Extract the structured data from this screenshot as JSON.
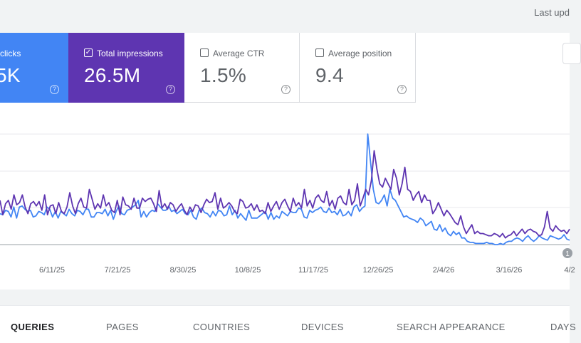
{
  "header": {
    "last_updated": "Last upd"
  },
  "metrics": [
    {
      "label": "clicks",
      "value": "5K",
      "checked": true,
      "color": "#4285f4"
    },
    {
      "label": "Total impressions",
      "value": "26.5M",
      "checked": true,
      "color": "#5e35b1"
    },
    {
      "label": "Average CTR",
      "value": "1.5%",
      "checked": false
    },
    {
      "label": "Average position",
      "value": "9.4",
      "checked": false
    }
  ],
  "help_glyph": "?",
  "chart_data": {
    "type": "line",
    "x_tick_labels": [
      "6/11/25",
      "7/21/25",
      "8/30/25",
      "10/8/25",
      "11/17/25",
      "12/26/25",
      "2/4/26",
      "3/16/26",
      "4/2"
    ],
    "grid": true,
    "annotation": "1",
    "series": [
      {
        "name": "clicks",
        "color": "#4285f4",
        "values": [
          28,
          27,
          31,
          30,
          25,
          34,
          24,
          34,
          35,
          32,
          30,
          31,
          25,
          26,
          30,
          29,
          27,
          34,
          32,
          25,
          30,
          24,
          30,
          28,
          26,
          32,
          28,
          26,
          31,
          30,
          27,
          32,
          32,
          25,
          25,
          29,
          29,
          28,
          32,
          26,
          31,
          23,
          30,
          35,
          28,
          27,
          31,
          32,
          34,
          36,
          40,
          25,
          30,
          25,
          29,
          31,
          30,
          37,
          34,
          31,
          31,
          35,
          30,
          31,
          28,
          30,
          32,
          28,
          27,
          31,
          25,
          23,
          31,
          33,
          29,
          28,
          25,
          30,
          26,
          31,
          30,
          26,
          27,
          35,
          27,
          31,
          24,
          28,
          25,
          22,
          31,
          24,
          24,
          24,
          26,
          28,
          30,
          23,
          29,
          23,
          26,
          24,
          30,
          28,
          26,
          30,
          29,
          29,
          33,
          32,
          25,
          24,
          31,
          29,
          31,
          32,
          34,
          30,
          29,
          33,
          29,
          30,
          27,
          32,
          26,
          27,
          30,
          26,
          34,
          36,
          30,
          33,
          35,
          100,
          75,
          50,
          38,
          37,
          40,
          45,
          35,
          50,
          42,
          40,
          35,
          30,
          25,
          26,
          24,
          23,
          22,
          20,
          24,
          22,
          17,
          19,
          21,
          14,
          13,
          18,
          12,
          15,
          10,
          8,
          12,
          9,
          11,
          6,
          6,
          3,
          2,
          2,
          1,
          1,
          1,
          1,
          2,
          1,
          1,
          0,
          0,
          1,
          0,
          2,
          3,
          3,
          5,
          6,
          5,
          3,
          6,
          8,
          5,
          3,
          5,
          8,
          6,
          5,
          4,
          8,
          7,
          6,
          5,
          6,
          9,
          5,
          4
        ]
      },
      {
        "name": "Total impressions",
        "color": "#5e35b1",
        "values": [
          40,
          27,
          37,
          40,
          32,
          45,
          36,
          38,
          45,
          34,
          28,
          37,
          39,
          35,
          39,
          31,
          45,
          27,
          35,
          36,
          28,
          38,
          30,
          28,
          34,
          47,
          35,
          28,
          37,
          42,
          34,
          33,
          50,
          41,
          32,
          37,
          33,
          45,
          35,
          38,
          31,
          29,
          40,
          27,
          43,
          36,
          35,
          32,
          42,
          33,
          33,
          42,
          39,
          41,
          42,
          37,
          30,
          49,
          33,
          37,
          32,
          38,
          36,
          30,
          34,
          37,
          31,
          27,
          34,
          30,
          36,
          35,
          29,
          36,
          41,
          38,
          39,
          47,
          32,
          42,
          33,
          35,
          38,
          35,
          30,
          28,
          41,
          39,
          33,
          34,
          37,
          31,
          36,
          30,
          31,
          28,
          38,
          30,
          35,
          39,
          32,
          38,
          41,
          35,
          30,
          42,
          35,
          38,
          33,
          50,
          35,
          40,
          33,
          42,
          45,
          40,
          38,
          48,
          35,
          40,
          32,
          42,
          44,
          38,
          36,
          50,
          36,
          40,
          55,
          35,
          42,
          50,
          45,
          58,
          85,
          68,
          55,
          52,
          60,
          55,
          50,
          68,
          60,
          45,
          55,
          70,
          50,
          48,
          40,
          45,
          48,
          38,
          45,
          40,
          40,
          28,
          32,
          38,
          32,
          26,
          31,
          28,
          24,
          20,
          18,
          26,
          16,
          10,
          14,
          18,
          10,
          12,
          10,
          10,
          9,
          8,
          8,
          10,
          9,
          7,
          10,
          6,
          8,
          9,
          12,
          8,
          11,
          14,
          10,
          13,
          14,
          12,
          11,
          8,
          9,
          16,
          30,
          15,
          12,
          17,
          14,
          12,
          13,
          10,
          14
        ]
      }
    ]
  },
  "tabs": [
    {
      "label": "QUERIES",
      "active": true
    },
    {
      "label": "PAGES",
      "active": false
    },
    {
      "label": "COUNTRIES",
      "active": false
    },
    {
      "label": "DEVICES",
      "active": false
    },
    {
      "label": "SEARCH APPEARANCE",
      "active": false
    },
    {
      "label": "DAYS",
      "active": false
    }
  ]
}
